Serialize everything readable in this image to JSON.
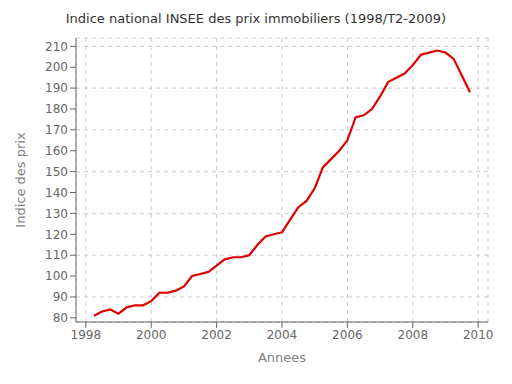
{
  "chart_data": {
    "type": "line",
    "title": "Indice national INSEE des prix immobiliers (1998/T2-2009)",
    "xlabel": "Annees",
    "ylabel": "Indice des prix",
    "color": "#dd0000",
    "grid": true,
    "xlim": [
      1997.7,
      2010.3
    ],
    "ylim": [
      78,
      214
    ],
    "xticks": [
      1998,
      2000,
      2002,
      2004,
      2006,
      2008,
      2010
    ],
    "yticks": [
      80,
      90,
      100,
      110,
      120,
      130,
      140,
      150,
      160,
      170,
      180,
      190,
      200,
      210
    ],
    "x": [
      1998.25,
      1998.5,
      1998.75,
      1999.0,
      1999.25,
      1999.5,
      1999.75,
      2000.0,
      2000.25,
      2000.5,
      2000.75,
      2001.0,
      2001.25,
      2001.5,
      2001.75,
      2002.0,
      2002.25,
      2002.5,
      2002.75,
      2003.0,
      2003.25,
      2003.5,
      2003.75,
      2004.0,
      2004.25,
      2004.5,
      2004.75,
      2005.0,
      2005.25,
      2005.5,
      2005.75,
      2006.0,
      2006.25,
      2006.5,
      2006.75,
      2007.0,
      2007.25,
      2007.5,
      2007.75,
      2008.0,
      2008.25,
      2008.5,
      2008.75,
      2009.0,
      2009.25,
      2009.5,
      2009.75
    ],
    "values": [
      81,
      83,
      84,
      82,
      85,
      86,
      86,
      88,
      92,
      92,
      93,
      95,
      100,
      101,
      102,
      105,
      108,
      109,
      109,
      110,
      115,
      119,
      120,
      121,
      127,
      133,
      136,
      142,
      152,
      156,
      160,
      165,
      176,
      177,
      180,
      186,
      193,
      195,
      197,
      201,
      206,
      207,
      208,
      207,
      204,
      196,
      188
    ]
  }
}
